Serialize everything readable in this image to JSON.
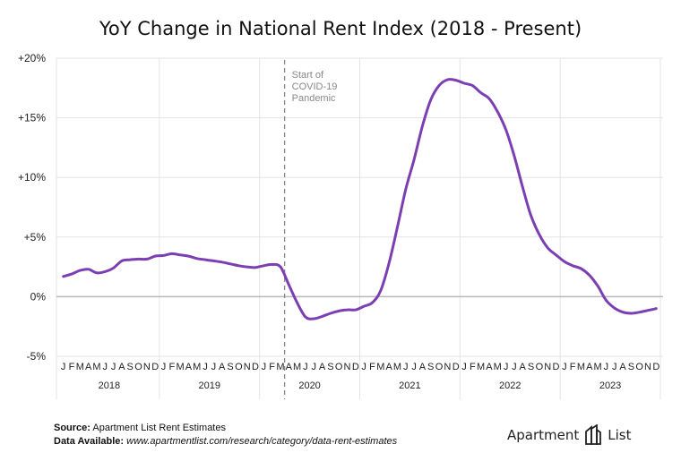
{
  "chart_data": {
    "type": "line",
    "title": "YoY Change in National Rent Index (2018 - Present)",
    "xlabel": "",
    "ylabel": "",
    "ylim": [
      -5,
      20
    ],
    "yticks": [
      -5,
      0,
      5,
      10,
      15,
      20
    ],
    "ytick_labels": [
      "-5%",
      "0%",
      "+5%",
      "+10%",
      "+15%",
      "+20%"
    ],
    "month_letters": [
      "J",
      "F",
      "M",
      "A",
      "M",
      "J",
      "J",
      "A",
      "S",
      "O",
      "N",
      "D"
    ],
    "years": [
      "2018",
      "2019",
      "2020",
      "2021",
      "2022",
      "2023"
    ],
    "series": [
      {
        "name": "YoY Change in National Rent Index",
        "color": "#7b3fb3",
        "values": [
          1.7,
          1.9,
          2.2,
          2.3,
          2.0,
          2.1,
          2.4,
          3.0,
          3.1,
          3.15,
          3.15,
          3.4,
          3.45,
          3.6,
          3.5,
          3.4,
          3.2,
          3.1,
          3.0,
          2.9,
          2.75,
          2.6,
          2.5,
          2.45,
          2.6,
          2.7,
          2.5,
          1.0,
          -0.5,
          -1.7,
          -1.85,
          -1.65,
          -1.4,
          -1.2,
          -1.1,
          -1.1,
          -0.8,
          -0.5,
          0.5,
          2.8,
          5.8,
          9.0,
          11.5,
          14.3,
          16.5,
          17.7,
          18.2,
          18.15,
          17.9,
          17.7,
          17.1,
          16.6,
          15.5,
          14.0,
          11.8,
          9.2,
          6.8,
          5.2,
          4.1,
          3.5,
          2.95,
          2.6,
          2.35,
          1.8,
          0.9,
          -0.3,
          -0.95,
          -1.3,
          -1.4,
          -1.3,
          -1.15,
          -1.0
        ]
      }
    ],
    "annotation": {
      "month_index": 26.5,
      "lines": [
        "Start of",
        "COVID-19",
        "Pandemic"
      ]
    },
    "zero_line": true,
    "grid": true
  },
  "footer": {
    "source_label": "Source:",
    "source_text": "Apartment List Rent Estimates",
    "data_label": "Data Available:",
    "data_url": "www.apartmentlist.com/research/category/data-rent-estimates"
  },
  "brand": {
    "left": "Apartment",
    "right": "List"
  }
}
